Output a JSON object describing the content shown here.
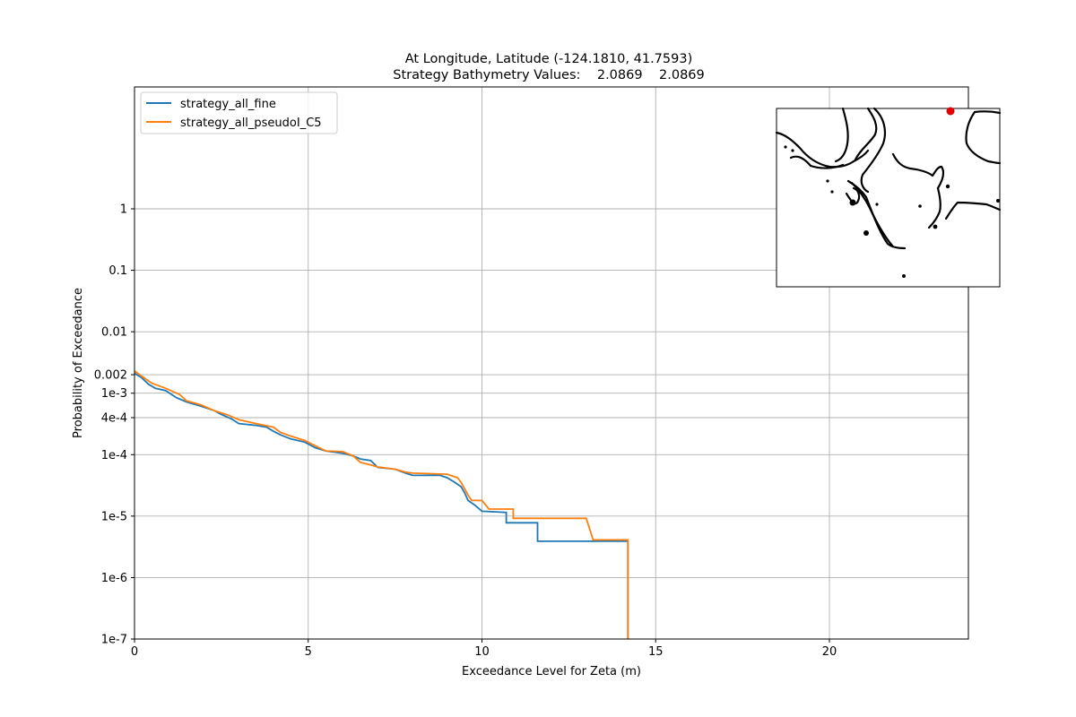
{
  "chart_data": {
    "type": "line",
    "title_line1": "At Longitude, Latitude (-124.1810,  41.7593)",
    "title_line2": "Strategy Bathymetry Values:    2.0869    2.0869",
    "xlabel": "Exceedance Level for Zeta (m)",
    "ylabel": "Probability of Exceedance",
    "xlim": [
      0,
      24
    ],
    "ylim": [
      1e-07,
      20
    ],
    "yscale": "log",
    "grid": true,
    "legend_location": "upper-left",
    "x_ticks": [
      {
        "value": 0,
        "label": "0"
      },
      {
        "value": 5,
        "label": "5"
      },
      {
        "value": 10,
        "label": "10"
      },
      {
        "value": 15,
        "label": "15"
      },
      {
        "value": 20,
        "label": "20"
      }
    ],
    "y_ticks": [
      {
        "value": 1,
        "label": "1"
      },
      {
        "value": 0.1,
        "label": "0.1"
      },
      {
        "value": 0.01,
        "label": "0.01"
      },
      {
        "value": 0.002,
        "label": "0.002"
      },
      {
        "value": 0.001,
        "label": "1e-3"
      },
      {
        "value": 0.0004,
        "label": "4e-4"
      },
      {
        "value": 0.0001,
        "label": "1e-4"
      },
      {
        "value": 1e-05,
        "label": "1e-5"
      },
      {
        "value": 1e-06,
        "label": "1e-6"
      },
      {
        "value": 1e-07,
        "label": "1e-7"
      }
    ],
    "series": [
      {
        "name": "strategy_all_fine",
        "color": "#1f77b4",
        "points": [
          [
            0,
            0.0021
          ],
          [
            0.2,
            0.0018
          ],
          [
            0.4,
            0.0014
          ],
          [
            0.6,
            0.0012
          ],
          [
            0.9,
            0.0011
          ],
          [
            1.2,
            0.00085
          ],
          [
            1.5,
            0.00072
          ],
          [
            1.9,
            0.00062
          ],
          [
            2.3,
            0.00052
          ],
          [
            2.5,
            0.00045
          ],
          [
            2.8,
            0.00038
          ],
          [
            3.0,
            0.00032
          ],
          [
            3.5,
            0.0003
          ],
          [
            3.8,
            0.00028
          ],
          [
            4.0,
            0.00024
          ],
          [
            4.2,
            0.00021
          ],
          [
            4.5,
            0.00018
          ],
          [
            4.9,
            0.00016
          ],
          [
            5.2,
            0.00013
          ],
          [
            5.5,
            0.000115
          ],
          [
            6.0,
            0.000105
          ],
          [
            6.3,
            9.5e-05
          ],
          [
            6.5,
            8.5e-05
          ],
          [
            6.8,
            8e-05
          ],
          [
            7.0,
            6.2e-05
          ],
          [
            7.5,
            5.8e-05
          ],
          [
            7.8,
            5e-05
          ],
          [
            8.0,
            4.6e-05
          ],
          [
            8.8,
            4.6e-05
          ],
          [
            9.0,
            4.2e-05
          ],
          [
            9.2,
            3.6e-05
          ],
          [
            9.4,
            3e-05
          ],
          [
            9.5,
            2.4e-05
          ],
          [
            9.6,
            1.8e-05
          ],
          [
            9.8,
            1.5e-05
          ],
          [
            10.0,
            1.2e-05
          ],
          [
            10.7,
            1.15e-05
          ],
          [
            10.7,
            7.8e-06
          ],
          [
            11.6,
            7.8e-06
          ],
          [
            11.6,
            3.9e-06
          ],
          [
            14.2,
            3.9e-06
          ],
          [
            14.2,
            1e-07
          ]
        ]
      },
      {
        "name": "strategy_all_pseudoI_C5",
        "color": "#ff7f0e",
        "points": [
          [
            0,
            0.0023
          ],
          [
            0.2,
            0.0019
          ],
          [
            0.5,
            0.00145
          ],
          [
            0.9,
            0.0012
          ],
          [
            1.3,
            0.00095
          ],
          [
            1.5,
            0.00075
          ],
          [
            1.9,
            0.00065
          ],
          [
            2.3,
            0.00052
          ],
          [
            2.7,
            0.00044
          ],
          [
            3.0,
            0.00037
          ],
          [
            3.5,
            0.00032
          ],
          [
            4.0,
            0.00028
          ],
          [
            4.2,
            0.00023
          ],
          [
            4.5,
            0.0002
          ],
          [
            4.9,
            0.00017
          ],
          [
            5.2,
            0.00014
          ],
          [
            5.5,
            0.000115
          ],
          [
            6.0,
            0.000112
          ],
          [
            6.3,
            9.5e-05
          ],
          [
            6.5,
            7.5e-05
          ],
          [
            6.8,
            6.8e-05
          ],
          [
            7.0,
            6.3e-05
          ],
          [
            7.5,
            5.8e-05
          ],
          [
            7.8,
            5.2e-05
          ],
          [
            8.0,
            5e-05
          ],
          [
            9.0,
            4.8e-05
          ],
          [
            9.3,
            4.2e-05
          ],
          [
            9.4,
            3.5e-05
          ],
          [
            9.5,
            2.8e-05
          ],
          [
            9.6,
            2.2e-05
          ],
          [
            9.7,
            1.8e-05
          ],
          [
            10.0,
            1.8e-05
          ],
          [
            10.2,
            1.3e-05
          ],
          [
            10.9,
            1.3e-05
          ],
          [
            10.9,
            9.2e-06
          ],
          [
            13.0,
            9.2e-06
          ],
          [
            13.2,
            4.1e-06
          ],
          [
            14.2,
            4.1e-06
          ],
          [
            14.2,
            1e-07
          ]
        ]
      }
    ]
  },
  "inset_map": {
    "marker_color": "#e00000",
    "coastline_color": "#000000"
  }
}
